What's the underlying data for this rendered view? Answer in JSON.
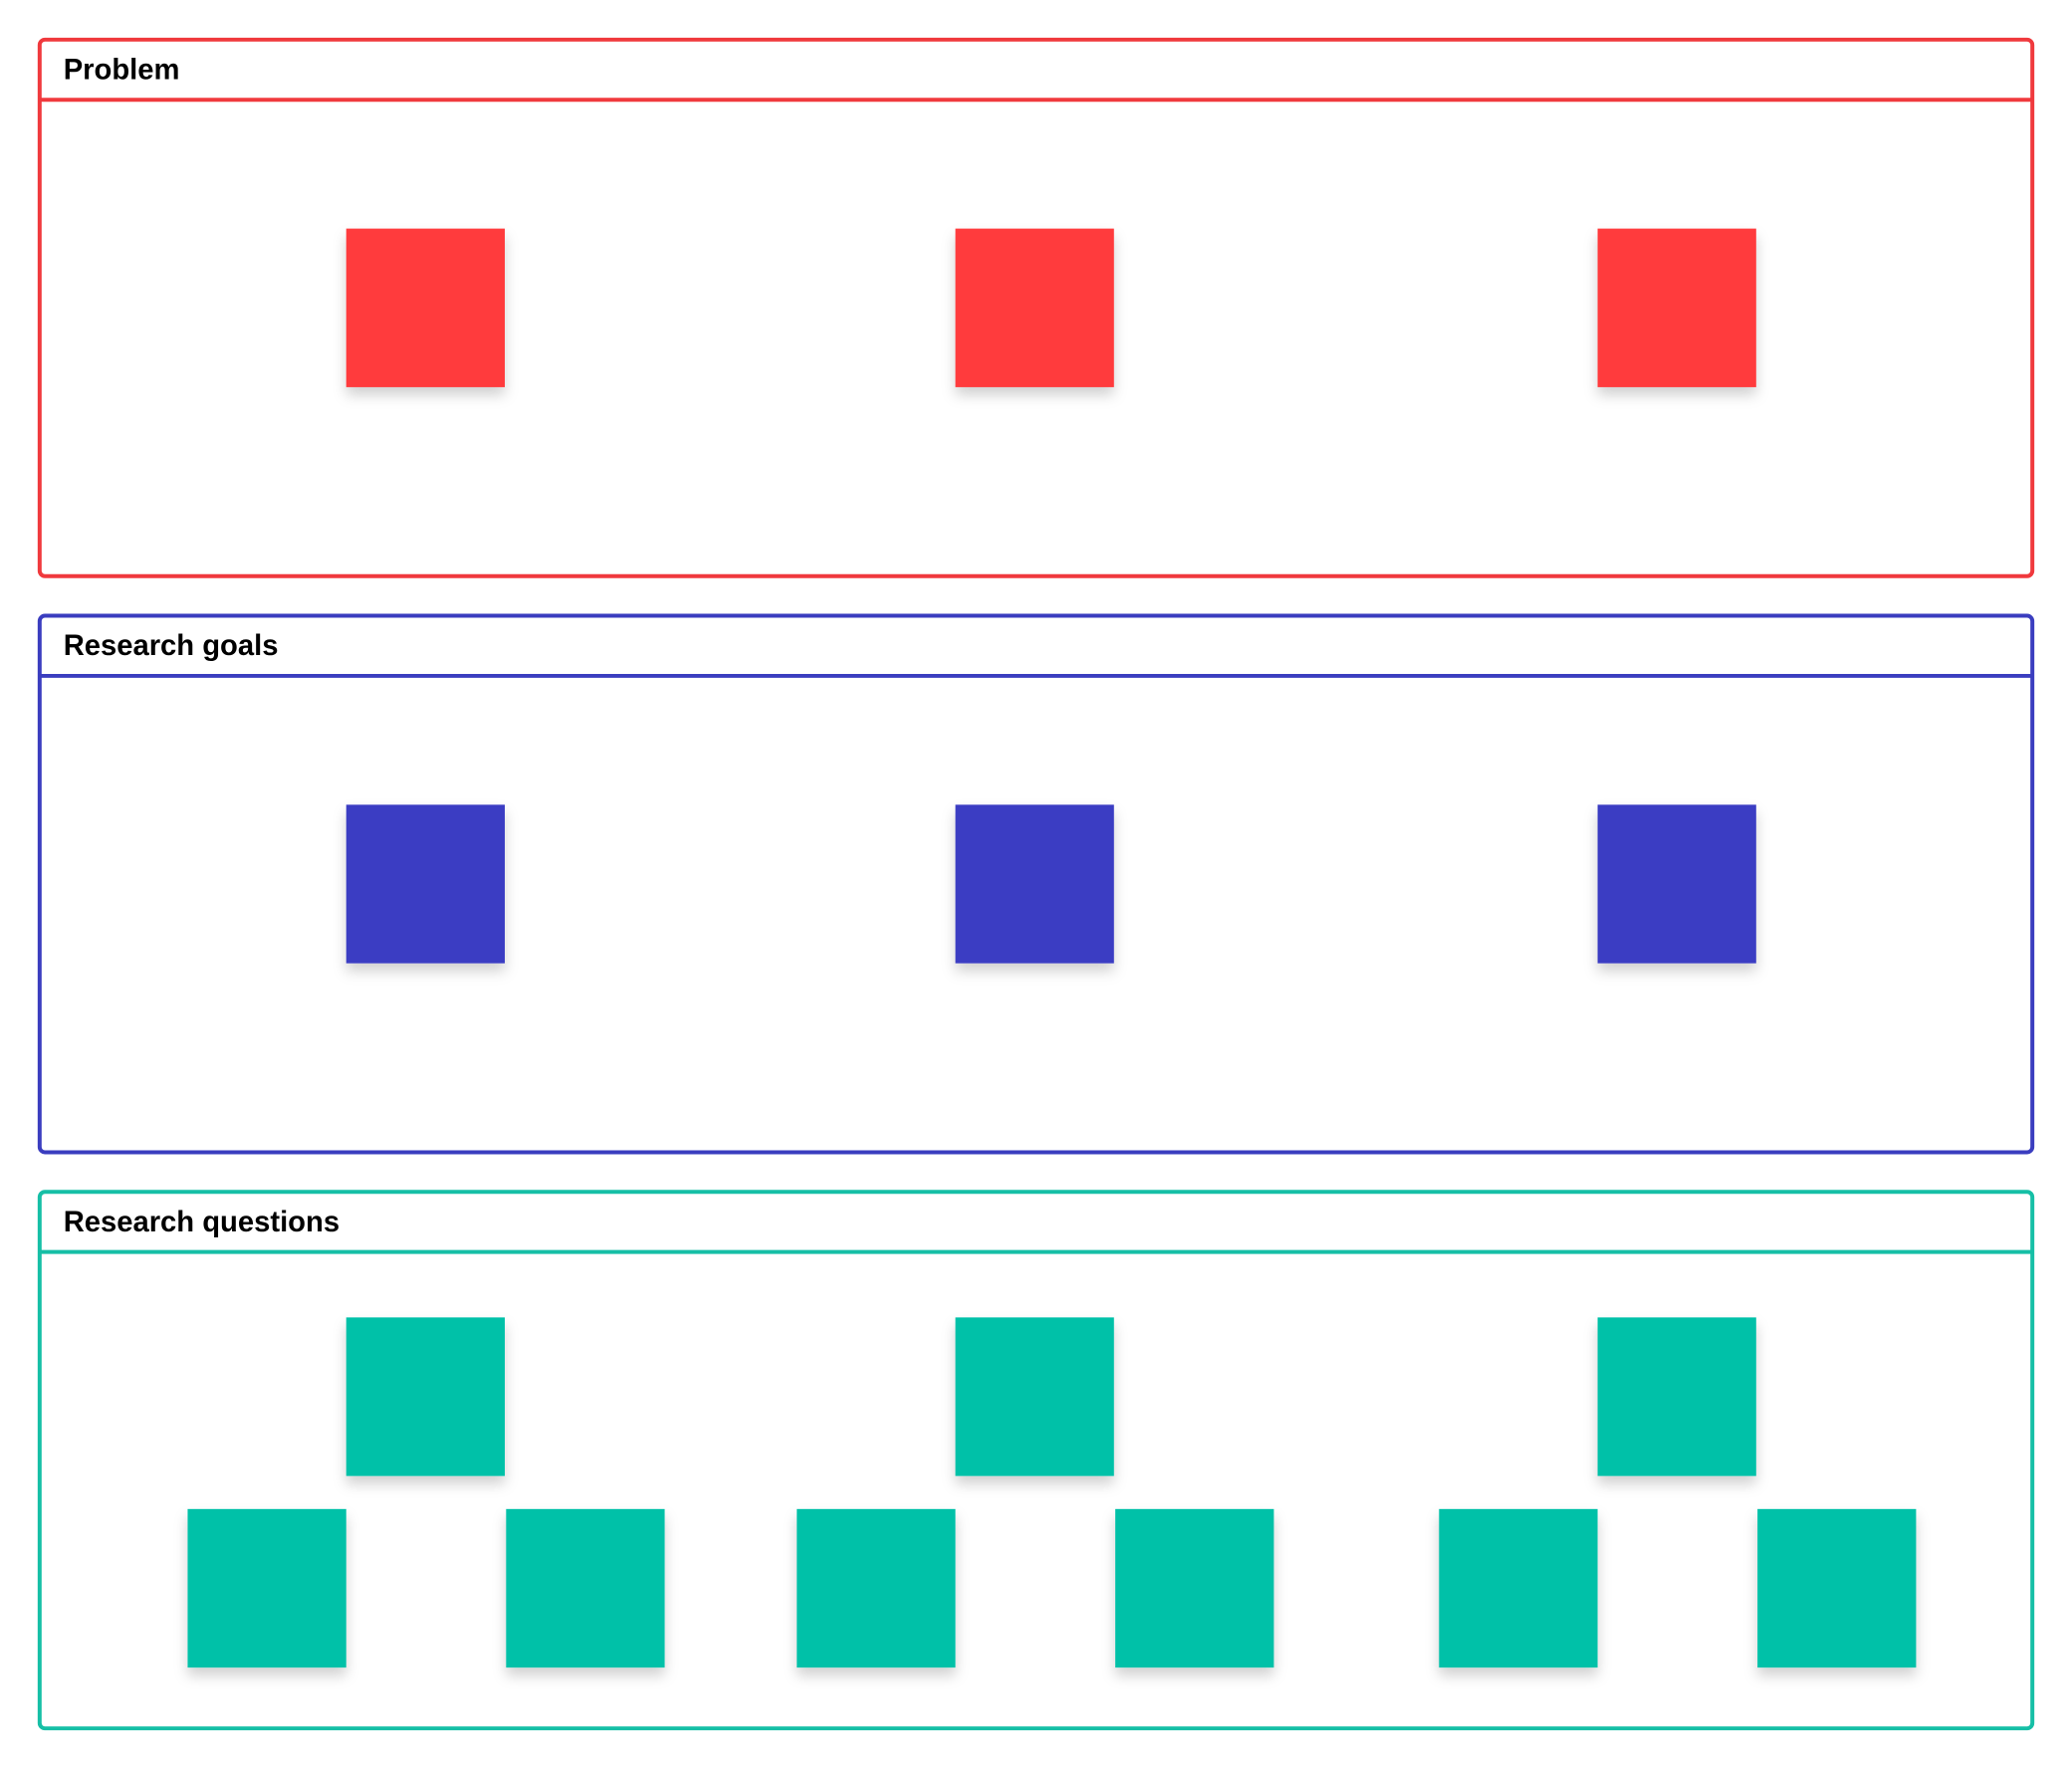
{
  "sections": [
    {
      "title": "Problem"
    },
    {
      "title": "Research goals"
    },
    {
      "title": "Research questions"
    }
  ]
}
